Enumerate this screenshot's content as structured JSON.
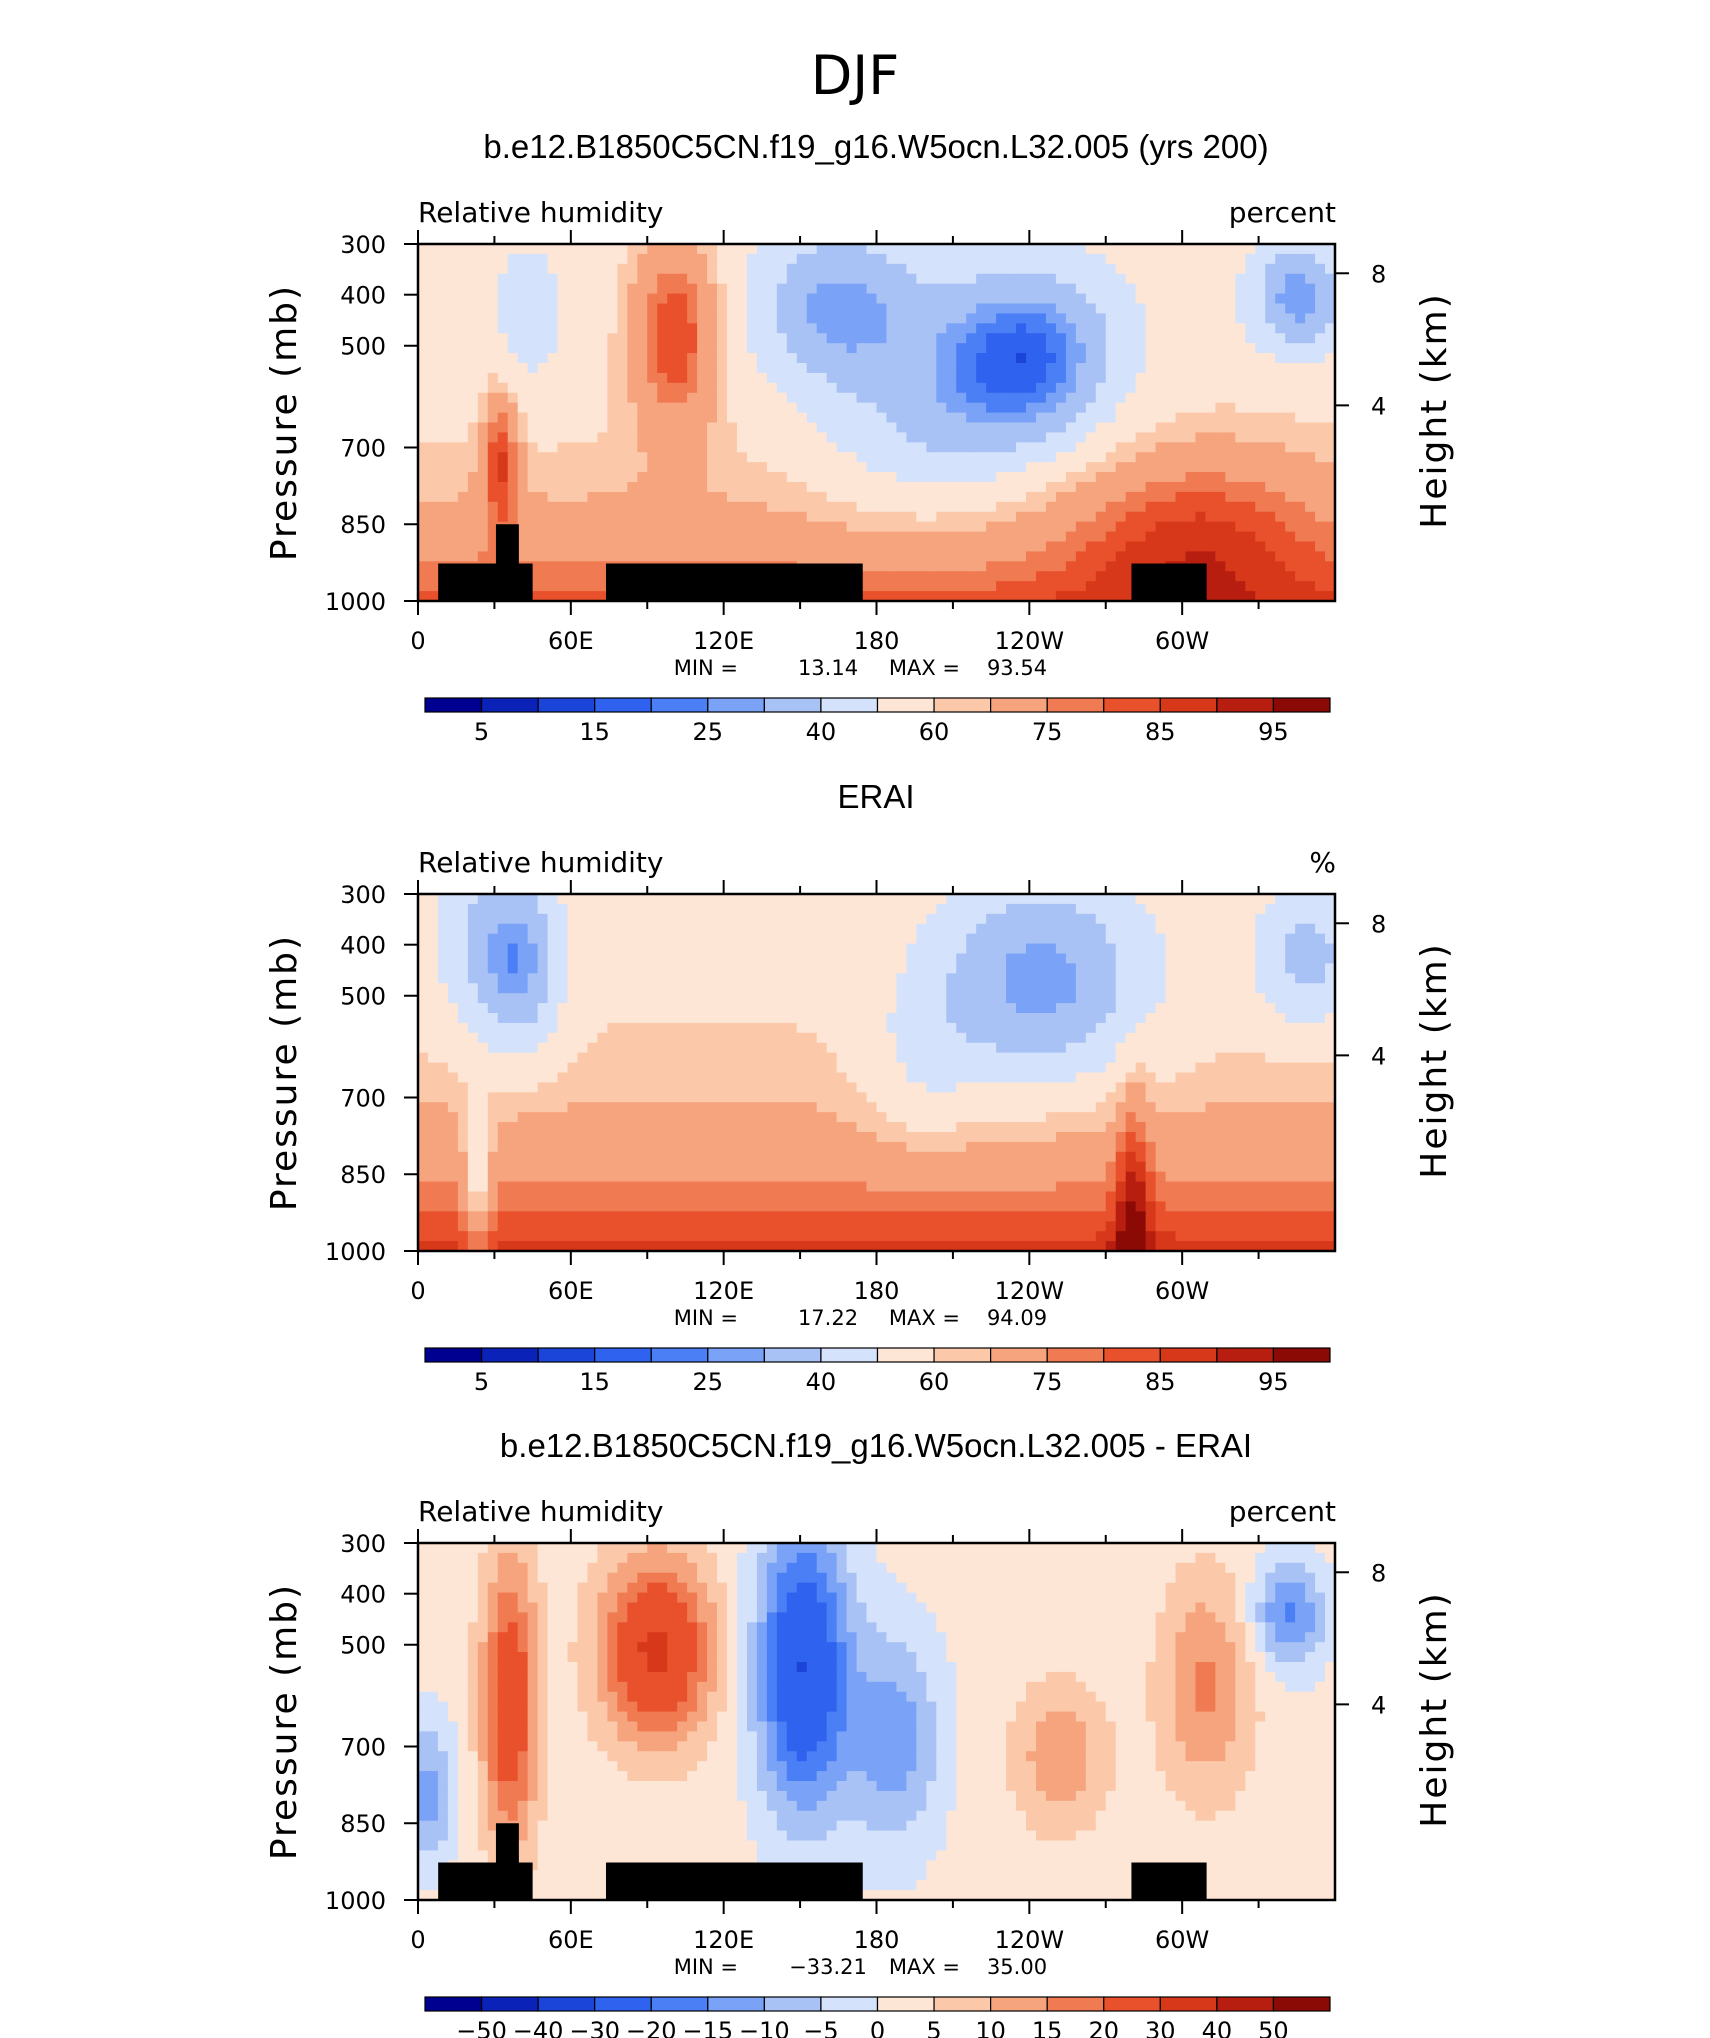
{
  "figure_title": "DJF",
  "colors": {
    "palette": [
      "#000090",
      "#0a22b8",
      "#1a45d8",
      "#2f62ee",
      "#4a7ff5",
      "#7aa2f7",
      "#a9c2f5",
      "#d4e3fb",
      "#fde6d6",
      "#fbc9aa",
      "#f6a47e",
      "#f07a51",
      "#e8512c",
      "#d8381a",
      "#b81e10",
      "#8c0a06"
    ],
    "land": "#000000"
  },
  "chart_data": [
    {
      "type": "contour",
      "title": "b.e12.B1850C5CN.f19_g16.W5ocn.L32.005 (yrs 200)",
      "left_label": "Relative humidity",
      "right_label": "percent",
      "ylabel": "Pressure (mb)",
      "y2label": "Height (km)",
      "x_ticks": [
        "0",
        "60E",
        "120E",
        "180",
        "120W",
        "60W"
      ],
      "y_ticks": [
        "300",
        "400",
        "500",
        "700",
        "850",
        "1000"
      ],
      "y2_ticks": [
        "8",
        "4"
      ],
      "min_label": "MIN =",
      "min_value": "13.14",
      "max_label": "MAX =",
      "max_value": "93.54",
      "colorbar_labels": [
        "5",
        "15",
        "25",
        "40",
        "60",
        "75",
        "85",
        "95"
      ],
      "scheme": "model"
    },
    {
      "type": "contour",
      "title": "ERAI",
      "left_label": "Relative humidity",
      "right_label": "%",
      "ylabel": "Pressure (mb)",
      "y2label": "Height (km)",
      "x_ticks": [
        "0",
        "60E",
        "120E",
        "180",
        "120W",
        "60W"
      ],
      "y_ticks": [
        "300",
        "400",
        "500",
        "700",
        "850",
        "1000"
      ],
      "y2_ticks": [
        "8",
        "4"
      ],
      "min_label": "MIN =",
      "min_value": "17.22",
      "max_label": "MAX =",
      "max_value": "94.09",
      "colorbar_labels": [
        "5",
        "15",
        "25",
        "40",
        "60",
        "75",
        "85",
        "95"
      ],
      "scheme": "obs"
    },
    {
      "type": "contour",
      "title": "b.e12.B1850C5CN.f19_g16.W5ocn.L32.005 - ERAI",
      "left_label": "Relative humidity",
      "right_label": "percent",
      "ylabel": "Pressure (mb)",
      "y2label": "Height (km)",
      "x_ticks": [
        "0",
        "60E",
        "120E",
        "180",
        "120W",
        "60W"
      ],
      "y_ticks": [
        "300",
        "400",
        "500",
        "700",
        "850",
        "1000"
      ],
      "y2_ticks": [
        "8",
        "4"
      ],
      "min_label": "MIN =",
      "min_value": "−33.21",
      "max_label": "MAX =",
      "max_value": "35.00",
      "colorbar_labels": [
        "−50",
        "−40",
        "−30",
        "−20",
        "−15",
        "−10",
        "−5",
        "0",
        "5",
        "10",
        "15",
        "20",
        "30",
        "40",
        "50"
      ],
      "scheme": "diff"
    }
  ]
}
